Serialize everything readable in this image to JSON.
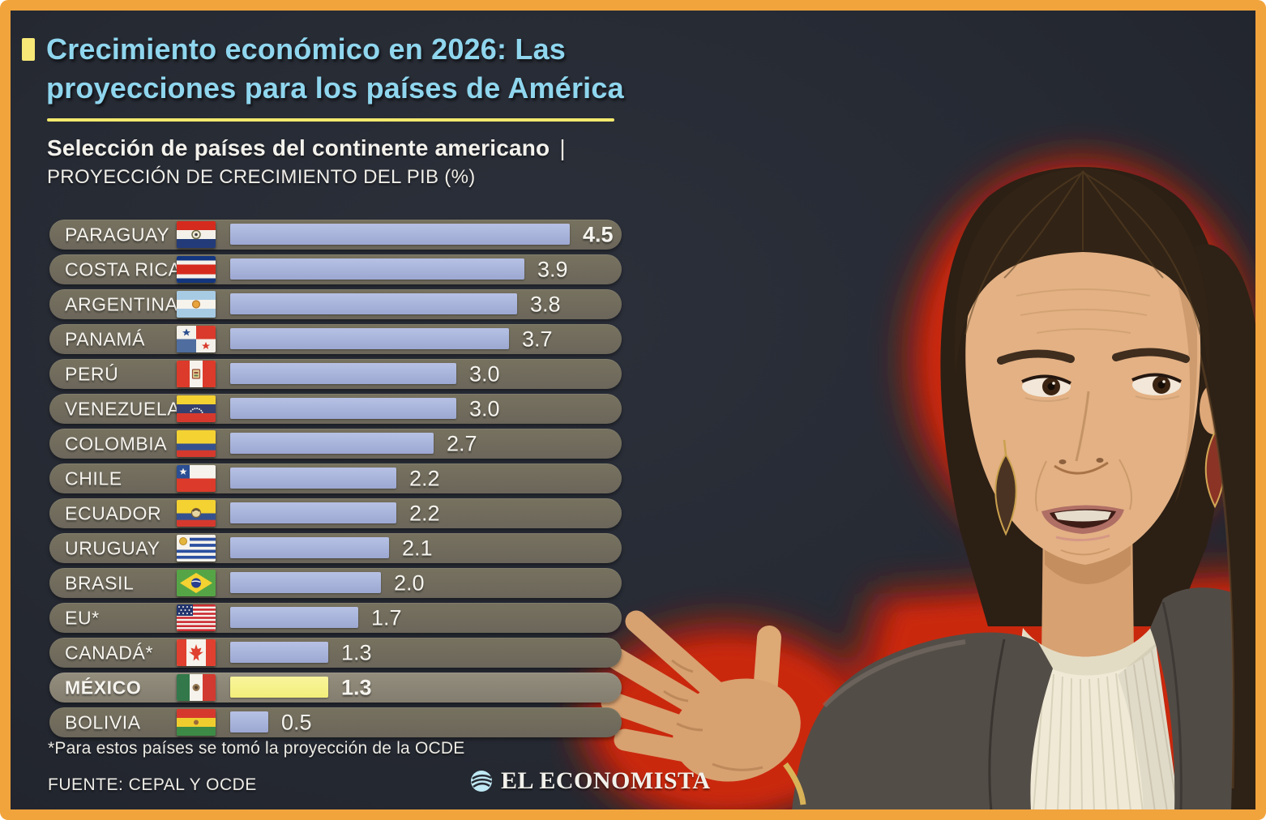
{
  "frame": {
    "border_color": "#f2a43c",
    "background_color": "#262a33"
  },
  "header": {
    "bullet_icon": "yellow-square-bullet",
    "accent_yellow": "#f7e878",
    "title_color": "#8fd6ee",
    "title_line1": "Crecimiento económico en 2026: Las",
    "title_line2": "proyecciones para los países de América",
    "subtitle_bold": "Selección de países del continente americano",
    "subtitle_separator": "|",
    "subtitle_regular": "PROYECCIÓN DE CRECIMIENTO DEL PIB (%)"
  },
  "chart_data": {
    "type": "bar",
    "orientation": "horizontal",
    "title": "Crecimiento económico en 2026: Las proyecciones para los países de América",
    "subtitle": "Selección de países del continente americano | PROYECCIÓN DE CRECIMIENTO DEL PIB (%)",
    "unit": "%",
    "xlim": [
      0,
      4.5
    ],
    "grid": false,
    "categories": [
      "PARAGUAY",
      "COSTA RICA",
      "ARGENTINA",
      "PANAMÁ",
      "PERÚ",
      "VENEZUELA",
      "COLOMBIA",
      "CHILE",
      "ECUADOR",
      "URUGUAY",
      "BRASIL",
      "EU*",
      "CANADÁ*",
      "MÉXICO",
      "BOLIVIA"
    ],
    "values": [
      4.5,
      3.9,
      3.8,
      3.7,
      3.0,
      3.0,
      2.7,
      2.2,
      2.2,
      2.1,
      2.0,
      1.7,
      1.3,
      1.3,
      0.5
    ],
    "value_labels": [
      "4.5",
      "3.9",
      "3.8",
      "3.7",
      "3.0",
      "3.0",
      "2.7",
      "2.2",
      "2.2",
      "2.1",
      "2.0",
      "1.7",
      "1.3",
      "1.3",
      "0.5"
    ],
    "flags": [
      "paraguay",
      "costa-rica",
      "argentina",
      "panama",
      "peru",
      "venezuela",
      "colombia",
      "chile",
      "ecuador",
      "uruguay",
      "brasil",
      "eu",
      "canada",
      "mexico",
      "bolivia"
    ],
    "highlight_index": 13,
    "bold_value_indexes": [
      0,
      13
    ],
    "bold_label_indexes": [
      13
    ],
    "bar_color": "#a6b1da",
    "highlight_bar_color": "#f4f07e",
    "row_color": "#6f6a5d",
    "highlight_row_color": "#8b8577",
    "label_color": "#f6f4ef"
  },
  "footer": {
    "footnote": "*Para estos países se tomó la proyección de la OCDE",
    "source": "FUENTE: CEPAL Y OCDE",
    "logo_icon": "el-economista-globe-icon",
    "logo_text": "EL ECONOMISTA"
  },
  "portrait": {
    "description": "Press photo of a woman with slicked-back dark hair, dangling earrings, cream pleated turtleneck and gray blazer, gesturing with an open hand, outlined by a red glow on a dark background"
  }
}
